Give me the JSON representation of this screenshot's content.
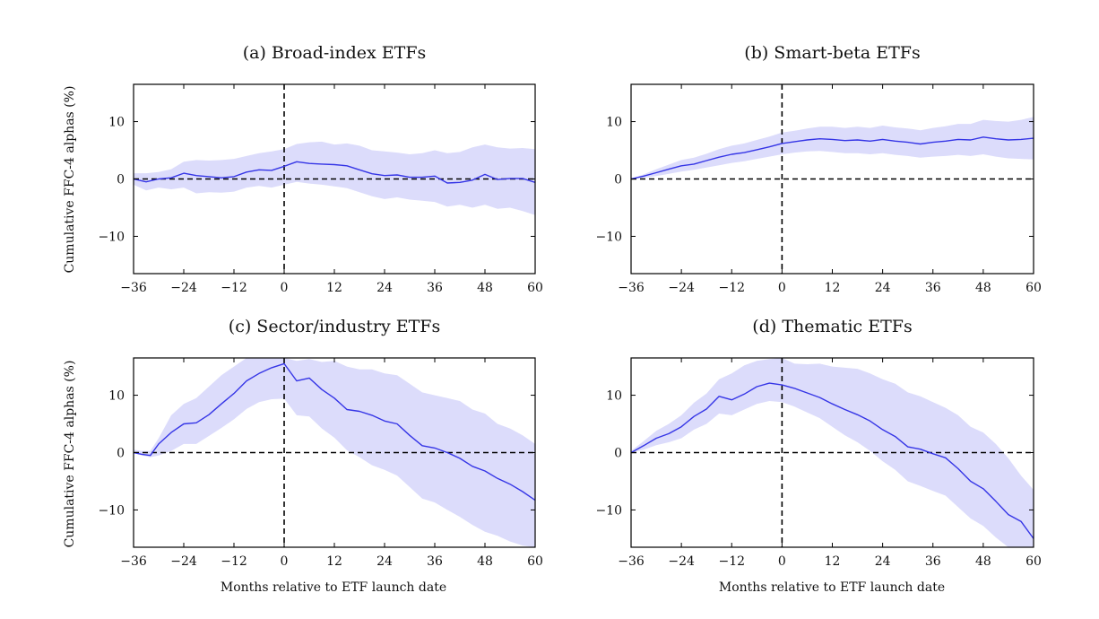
{
  "figure": {
    "ylabel": "Cumulative FFC-4 alphas (%)",
    "xlabel": "Months relative to ETF launch date"
  },
  "chart_data": [
    {
      "type": "line",
      "title": "(a) Broad-index ETFs",
      "xlim": [
        -36,
        60
      ],
      "ylim": [
        -16.5,
        16.5
      ],
      "xticks": [
        -36,
        -24,
        -12,
        0,
        12,
        24,
        36,
        48,
        60
      ],
      "yticks": [
        -10,
        0,
        10
      ],
      "tick_labels_x": [
        "−36",
        "−24",
        "−12",
        "0",
        "12",
        "24",
        "36",
        "48",
        "60"
      ],
      "tick_labels_y": [
        "−10",
        "0",
        "10"
      ],
      "reference_lines": {
        "y": 0,
        "x": 0,
        "style": "dashed"
      },
      "colors": {
        "line": "#3535e6",
        "band": "#dcdcfb"
      },
      "series": [
        {
          "x": [
            -36,
            -33,
            -30,
            -27,
            -24,
            -21,
            -18,
            -15,
            -12,
            -9,
            -6,
            -3,
            0,
            3,
            6,
            9,
            12,
            15,
            18,
            21,
            24,
            27,
            30,
            33,
            36,
            39,
            42,
            45,
            48,
            51,
            54,
            57,
            60
          ],
          "y": [
            0,
            -0.5,
            0,
            0.2,
            1,
            0.6,
            0.4,
            0.2,
            0.4,
            1.2,
            1.6,
            1.5,
            2.2,
            3,
            2.7,
            2.6,
            2.5,
            2.3,
            1.6,
            0.9,
            0.6,
            0.7,
            0.3,
            0.3,
            0.5,
            -0.7,
            -0.6,
            -0.2,
            0.8,
            -0.1,
            0.1,
            0.1,
            -0.6
          ],
          "lower": [
            -1,
            -2,
            -1.5,
            -1.8,
            -1.5,
            -2.5,
            -2.3,
            -2.4,
            -2.2,
            -1.5,
            -1.2,
            -1.5,
            -1,
            -0.5,
            -0.8,
            -1,
            -1.3,
            -1.6,
            -2.3,
            -3,
            -3.5,
            -3.2,
            -3.6,
            -3.8,
            -4,
            -4.8,
            -4.5,
            -5,
            -4.5,
            -5.2,
            -5,
            -5.6,
            -6.3
          ],
          "upper": [
            1,
            1,
            1.2,
            1.7,
            3,
            3.3,
            3.2,
            3.3,
            3.5,
            4,
            4.5,
            4.8,
            5.2,
            6.1,
            6.4,
            6.5,
            6,
            6.2,
            5.8,
            5,
            4.8,
            4.6,
            4.3,
            4.5,
            5,
            4.5,
            4.7,
            5.5,
            6,
            5.5,
            5.3,
            5.4,
            5.2
          ]
        }
      ]
    },
    {
      "type": "line",
      "title": "(b) Smart-beta ETFs",
      "xlim": [
        -36,
        60
      ],
      "ylim": [
        -16.5,
        16.5
      ],
      "xticks": [
        -36,
        -24,
        -12,
        0,
        12,
        24,
        36,
        48,
        60
      ],
      "yticks": [
        -10,
        0,
        10
      ],
      "tick_labels_x": [
        "−36",
        "−24",
        "−12",
        "0",
        "12",
        "24",
        "36",
        "48",
        "60"
      ],
      "tick_labels_y": [
        "−10",
        "0",
        "10"
      ],
      "reference_lines": {
        "y": 0,
        "x": 0,
        "style": "dashed"
      },
      "colors": {
        "line": "#3535e6",
        "band": "#dcdcfb"
      },
      "series": [
        {
          "x": [
            -36,
            -33,
            -30,
            -27,
            -24,
            -21,
            -18,
            -15,
            -12,
            -9,
            -6,
            -3,
            0,
            3,
            6,
            9,
            12,
            15,
            18,
            21,
            24,
            27,
            30,
            33,
            36,
            39,
            42,
            45,
            48,
            51,
            54,
            57,
            60
          ],
          "y": [
            0,
            0.5,
            1.1,
            1.7,
            2.3,
            2.6,
            3.2,
            3.8,
            4.3,
            4.6,
            5.1,
            5.6,
            6.2,
            6.5,
            6.8,
            7,
            6.9,
            6.7,
            6.8,
            6.6,
            6.9,
            6.6,
            6.4,
            6.1,
            6.4,
            6.6,
            6.9,
            6.8,
            7.3,
            7,
            6.8,
            6.9,
            7.1
          ],
          "lower": [
            0,
            0.2,
            0.5,
            0.9,
            1.3,
            1.6,
            2,
            2.4,
            2.8,
            3.1,
            3.5,
            3.9,
            4.3,
            4.6,
            4.8,
            4.9,
            4.7,
            4.5,
            4.5,
            4.3,
            4.5,
            4.2,
            4,
            3.7,
            3.9,
            4,
            4.2,
            4,
            4.3,
            3.9,
            3.6,
            3.5,
            3.4
          ],
          "upper": [
            0,
            0.8,
            1.7,
            2.5,
            3.3,
            3.7,
            4.4,
            5.2,
            5.8,
            6.2,
            6.8,
            7.4,
            8.1,
            8.4,
            8.8,
            9.1,
            9.1,
            8.9,
            9.1,
            8.9,
            9.3,
            9,
            8.8,
            8.5,
            8.9,
            9.2,
            9.6,
            9.6,
            10.3,
            10.1,
            10,
            10.3,
            10.8
          ]
        }
      ]
    },
    {
      "type": "line",
      "title": "(c) Sector/industry ETFs",
      "xlim": [
        -36,
        60
      ],
      "ylim": [
        -16.5,
        16.5
      ],
      "xticks": [
        -36,
        -24,
        -12,
        0,
        12,
        24,
        36,
        48,
        60
      ],
      "yticks": [
        -10,
        0,
        10
      ],
      "tick_labels_x": [
        "−36",
        "−24",
        "−12",
        "0",
        "12",
        "24",
        "36",
        "48",
        "60"
      ],
      "tick_labels_y": [
        "−10",
        "0",
        "10"
      ],
      "reference_lines": {
        "y": 0,
        "x": 0,
        "style": "dashed"
      },
      "colors": {
        "line": "#3535e6",
        "band": "#dcdcfb"
      },
      "series": [
        {
          "x": [
            -36,
            -34,
            -32,
            -30,
            -27,
            -24,
            -21,
            -18,
            -15,
            -12,
            -9,
            -6,
            -3,
            0,
            3,
            6,
            9,
            12,
            15,
            18,
            21,
            24,
            27,
            30,
            33,
            36,
            39,
            42,
            45,
            48,
            51,
            54,
            57,
            60
          ],
          "y": [
            0,
            -0.3,
            -0.5,
            1.5,
            3.5,
            5,
            5.2,
            6.6,
            8.5,
            10.3,
            12.5,
            13.8,
            14.8,
            15.5,
            12.5,
            13,
            11,
            9.5,
            7.5,
            7.2,
            6.5,
            5.5,
            5,
            3,
            1.2,
            0.8,
            0,
            -1,
            -2.4,
            -3.2,
            -4.5,
            -5.5,
            -6.8,
            -8.3
          ],
          "lower": [
            0,
            -0.5,
            -0.8,
            -0.5,
            0.3,
            1.5,
            1.5,
            2.9,
            4.3,
            5.8,
            7.6,
            8.8,
            9.3,
            9.4,
            6.5,
            6.3,
            4.2,
            2.6,
            0.4,
            -0.8,
            -2.2,
            -3,
            -4,
            -6,
            -8,
            -8.7,
            -10,
            -11.2,
            -12.6,
            -13.8,
            -14.5,
            -15.5,
            -16.2,
            -16.5
          ],
          "upper": [
            0.5,
            0.3,
            0.3,
            2.5,
            6.5,
            8.5,
            9.5,
            11.5,
            13.5,
            15,
            16.5,
            16.5,
            16.5,
            16.5,
            16,
            16.3,
            15.8,
            16,
            15,
            14.5,
            14.5,
            13.8,
            13.5,
            12,
            10.5,
            10,
            9.5,
            9,
            7.5,
            6.8,
            5,
            4.2,
            3,
            1.5
          ]
        }
      ]
    },
    {
      "type": "line",
      "title": "(d) Thematic ETFs",
      "xlim": [
        -36,
        60
      ],
      "ylim": [
        -16.5,
        16.5
      ],
      "xticks": [
        -36,
        -24,
        -12,
        0,
        12,
        24,
        36,
        48,
        60
      ],
      "yticks": [
        -10,
        0,
        10
      ],
      "tick_labels_x": [
        "−36",
        "−24",
        "−12",
        "0",
        "12",
        "24",
        "36",
        "48",
        "60"
      ],
      "tick_labels_y": [
        "−10",
        "0",
        "10"
      ],
      "reference_lines": {
        "y": 0,
        "x": 0,
        "style": "dashed"
      },
      "colors": {
        "line": "#3535e6",
        "band": "#dcdcfb"
      },
      "series": [
        {
          "x": [
            -36,
            -33,
            -30,
            -27,
            -24,
            -21,
            -18,
            -15,
            -12,
            -9,
            -6,
            -3,
            0,
            3,
            6,
            9,
            12,
            15,
            18,
            21,
            24,
            27,
            30,
            33,
            36,
            39,
            42,
            45,
            48,
            51,
            54,
            57,
            60
          ],
          "y": [
            0,
            1.2,
            2.5,
            3.3,
            4.5,
            6.3,
            7.6,
            9.8,
            9.2,
            10.2,
            11.5,
            12.1,
            11.8,
            11.2,
            10.4,
            9.6,
            8.5,
            7.5,
            6.6,
            5.5,
            4,
            2.8,
            1,
            0.6,
            -0.2,
            -0.9,
            -2.8,
            -5,
            -6.3,
            -8.5,
            -10.8,
            -12,
            -15
          ],
          "lower": [
            0,
            0.5,
            1.3,
            1.8,
            2.5,
            4,
            5,
            6.8,
            6.5,
            7.5,
            8.5,
            9,
            8.8,
            8,
            7,
            6,
            4.5,
            3,
            1.8,
            0.3,
            -1.5,
            -3,
            -5,
            -5.8,
            -6.7,
            -7.5,
            -9.5,
            -11.5,
            -12.8,
            -14.8,
            -16.5,
            -16.5,
            -16.5
          ],
          "upper": [
            0.3,
            2,
            3.8,
            5,
            6.5,
            8.7,
            10.3,
            12.8,
            13.8,
            15.2,
            16,
            16.3,
            16.5,
            15.5,
            15.4,
            15.5,
            15,
            14.8,
            14.6,
            13.8,
            12.8,
            12,
            10.5,
            9.8,
            8.8,
            7.8,
            6.5,
            4.5,
            3.5,
            1.5,
            -1,
            -4,
            -6.5
          ]
        }
      ]
    }
  ]
}
